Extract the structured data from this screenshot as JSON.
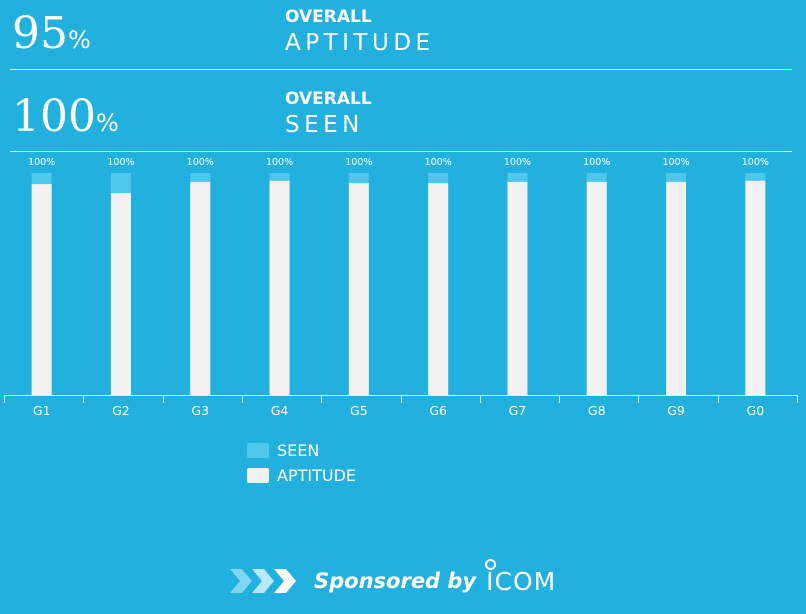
{
  "summary": {
    "aptitude": {
      "value": "95",
      "unit": "%",
      "label_top": "OVERALL",
      "label_bottom": "APTITUDE"
    },
    "seen": {
      "value": "100",
      "unit": "%",
      "label_top": "OVERALL",
      "label_bottom": "SEEN"
    }
  },
  "chart_data": {
    "type": "bar",
    "categories": [
      "G1",
      "G2",
      "G3",
      "G4",
      "G5",
      "G6",
      "G7",
      "G8",
      "G9",
      "G0"
    ],
    "series": [
      {
        "name": "SEEN",
        "values": [
          100,
          100,
          100,
          100,
          100,
          100,
          100,
          100,
          100,
          100
        ]
      },
      {
        "name": "APTITUDE",
        "values": [
          95,
          91,
          96,
          96.5,
          95.5,
          95.5,
          96,
          96,
          96,
          96.5
        ]
      }
    ],
    "data_labels": [
      "100%",
      "100%",
      "100%",
      "100%",
      "100%",
      "100%",
      "100%",
      "100%",
      "100%",
      "100%"
    ],
    "ylim": [
      0,
      100
    ],
    "grid": false,
    "legend_position": "bottom-left",
    "colors": {
      "seen": "#4fc6ec",
      "aptitude": "#f2f2f2"
    }
  },
  "legend": {
    "items": [
      {
        "label": "SEEN",
        "color": "#4fc6ec"
      },
      {
        "label": "APTITUDE",
        "color": "#f2f2f2"
      }
    ]
  },
  "sponsor": {
    "text": "Sponsored by",
    "logo_text": "ICOM",
    "icon": "chevrons-right-icon"
  }
}
